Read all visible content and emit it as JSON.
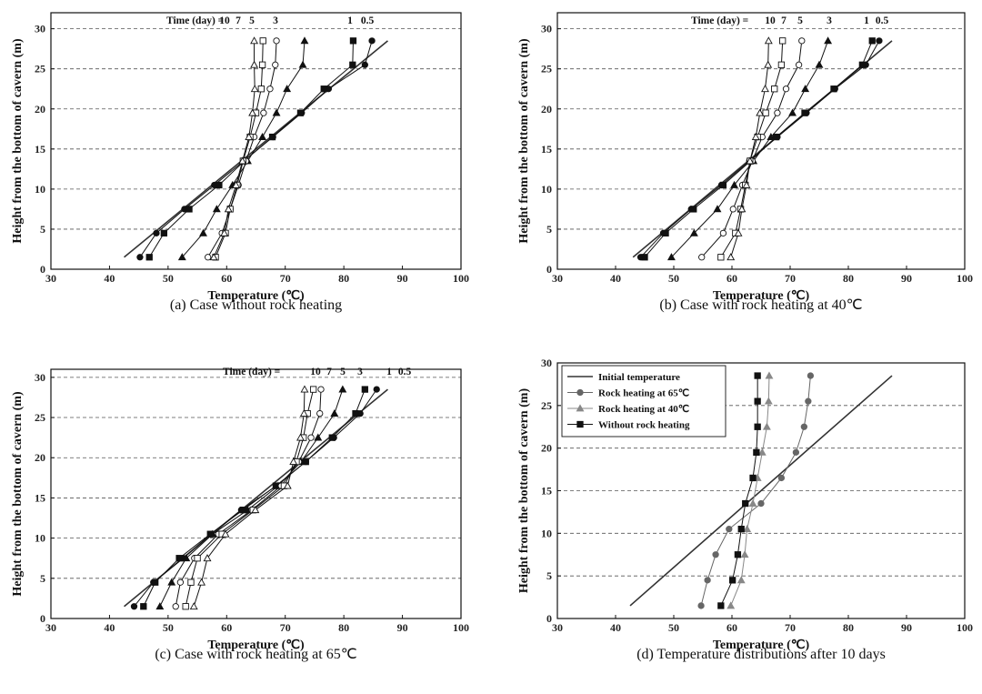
{
  "chart_data": [
    {
      "type": "line",
      "caption": "(a) Case without rock heating",
      "xlabel": "Temperature (℃)",
      "ylabel": "Height from the bottom of cavern (m)",
      "xlim": [
        30,
        100
      ],
      "ylim": [
        0,
        32
      ],
      "xticks": [
        "30",
        "40",
        "50",
        "60",
        "70",
        "80",
        "90",
        "100"
      ],
      "yticks": [
        "0",
        "5",
        "10",
        "15",
        "20",
        "25",
        "30"
      ],
      "grid": "horizontal-dashed",
      "time_label": "Time (day) =",
      "initial_line": {
        "x": [
          42.5,
          87.5
        ],
        "y": [
          1.5,
          28.5
        ]
      },
      "heights": [
        1.5,
        4.5,
        7.5,
        10.5,
        13.5,
        16.5,
        19.5,
        22.5,
        25.5,
        28.5
      ],
      "series": [
        {
          "name": "0.5",
          "marker": "circle-filled",
          "values": [
            45.2,
            48.0,
            52.8,
            57.9,
            62.9,
            67.9,
            72.8,
            77.4,
            83.6,
            84.8
          ]
        },
        {
          "name": "1",
          "marker": "square-filled",
          "values": [
            46.8,
            49.3,
            53.6,
            58.7,
            63.0,
            67.8,
            72.6,
            76.6,
            81.5,
            81.6
          ]
        },
        {
          "name": "3",
          "marker": "triangle-filled",
          "values": [
            52.4,
            56.0,
            58.3,
            61.0,
            63.6,
            66.1,
            68.5,
            70.3,
            73.0,
            73.3
          ]
        },
        {
          "name": "5",
          "marker": "circle-open",
          "values": [
            56.8,
            59.2,
            60.6,
            62.0,
            63.3,
            64.7,
            66.3,
            67.4,
            68.3,
            68.5
          ]
        },
        {
          "name": "7",
          "marker": "square-open",
          "values": [
            58.1,
            59.8,
            60.6,
            61.8,
            62.8,
            64.0,
            65.0,
            65.9,
            66.1,
            66.2
          ]
        },
        {
          "name": "10",
          "marker": "triangle-open",
          "values": [
            57.8,
            59.6,
            60.3,
            61.6,
            62.7,
            63.8,
            64.4,
            64.8,
            64.7,
            64.7
          ]
        }
      ]
    },
    {
      "type": "line",
      "caption": "(b) Case with rock heating at 40℃",
      "xlabel": "Temperature (℃)",
      "ylabel": "Height from the bottom of cavern (m)",
      "xlim": [
        30,
        100
      ],
      "ylim": [
        0,
        32
      ],
      "xticks": [
        "30",
        "40",
        "50",
        "60",
        "70",
        "80",
        "90",
        "100"
      ],
      "yticks": [
        "0",
        "5",
        "10",
        "15",
        "20",
        "25",
        "30"
      ],
      "grid": "horizontal-dashed",
      "time_label": "Time (day) =",
      "initial_line": {
        "x": [
          43.0,
          87.5
        ],
        "y": [
          1.5,
          28.5
        ]
      },
      "heights": [
        1.5,
        4.5,
        7.5,
        10.5,
        13.5,
        16.5,
        19.5,
        22.5,
        25.5,
        28.5
      ],
      "series": [
        {
          "name": "0.5",
          "marker": "circle-filled",
          "values": [
            44.3,
            48.2,
            53.0,
            58.2,
            63.0,
            67.8,
            72.8,
            77.7,
            83.0,
            85.3
          ]
        },
        {
          "name": "1",
          "marker": "square-filled",
          "values": [
            45.0,
            48.6,
            53.4,
            58.5,
            63.2,
            67.6,
            72.5,
            77.5,
            82.4,
            84.1
          ]
        },
        {
          "name": "3",
          "marker": "triangle-filled",
          "values": [
            49.6,
            53.5,
            57.5,
            60.4,
            63.7,
            66.7,
            70.4,
            72.6,
            75.0,
            76.5
          ]
        },
        {
          "name": "5",
          "marker": "circle-open",
          "values": [
            54.8,
            58.5,
            60.2,
            61.8,
            63.5,
            65.2,
            67.8,
            69.3,
            71.5,
            72.0
          ]
        },
        {
          "name": "7",
          "marker": "square-open",
          "values": [
            58.1,
            60.6,
            61.5,
            62.3,
            63.1,
            64.4,
            65.8,
            67.3,
            68.5,
            68.7
          ]
        },
        {
          "name": "10",
          "marker": "triangle-open",
          "values": [
            59.8,
            61.1,
            61.7,
            62.5,
            63.1,
            64.1,
            64.8,
            65.7,
            66.2,
            66.3
          ]
        }
      ]
    },
    {
      "type": "line",
      "caption": "(c) Case with rock heating at 65℃",
      "xlabel": "Temperature (℃)",
      "ylabel": "Height from the bottom of cavern (m)",
      "xlim": [
        30,
        100
      ],
      "ylim": [
        0,
        31
      ],
      "xticks": [
        "30",
        "40",
        "50",
        "60",
        "70",
        "80",
        "90",
        "100"
      ],
      "yticks": [
        "0",
        "5",
        "10",
        "15",
        "20",
        "25",
        "30"
      ],
      "grid": "horizontal-dashed",
      "time_label": "Time (day) =",
      "initial_line": {
        "x": [
          42.5,
          87.5
        ],
        "y": [
          1.5,
          28.5
        ]
      },
      "heights": [
        1.5,
        4.5,
        7.5,
        10.5,
        13.5,
        16.5,
        19.5,
        22.5,
        25.5,
        28.5
      ],
      "series": [
        {
          "name": "0.5",
          "marker": "circle-filled",
          "values": [
            44.2,
            47.5,
            52.6,
            57.3,
            62.5,
            68.5,
            73.5,
            78.3,
            82.8,
            85.6
          ]
        },
        {
          "name": "1",
          "marker": "square-filled",
          "values": [
            45.8,
            47.8,
            51.9,
            57.2,
            62.8,
            68.4,
            73.5,
            78.0,
            82.0,
            83.6
          ]
        },
        {
          "name": "3",
          "marker": "triangle-filled",
          "values": [
            48.6,
            50.6,
            53.1,
            57.6,
            63.6,
            68.8,
            72.7,
            75.6,
            78.4,
            79.8
          ]
        },
        {
          "name": "5",
          "marker": "circle-open",
          "values": [
            51.3,
            52.1,
            54.5,
            58.6,
            64.3,
            69.3,
            72.3,
            74.4,
            75.9,
            76.1
          ]
        },
        {
          "name": "7",
          "marker": "square-open",
          "values": [
            53.0,
            53.9,
            55.0,
            59.2,
            64.5,
            69.8,
            71.9,
            73.1,
            73.8,
            74.8
          ]
        },
        {
          "name": "10",
          "marker": "triangle-open",
          "values": [
            54.4,
            55.7,
            56.7,
            59.8,
            64.9,
            70.4,
            71.4,
            72.6,
            73.2,
            73.3
          ]
        }
      ]
    },
    {
      "type": "line",
      "caption": "(d) Temperature distributions after 10 days",
      "xlabel": "Temperature (℃)",
      "ylabel": "Height from the bottom of cavern (m)",
      "xlim": [
        30,
        100
      ],
      "ylim": [
        0,
        30
      ],
      "xticks": [
        "30",
        "40",
        "50",
        "60",
        "70",
        "80",
        "90",
        "100"
      ],
      "yticks": [
        "0",
        "5",
        "10",
        "15",
        "20",
        "25",
        "30"
      ],
      "grid": "horizontal-dashed",
      "legend": "top-left",
      "initial_line": {
        "name": "Initial temperature",
        "x": [
          42.5,
          87.5
        ],
        "y": [
          1.5,
          28.5
        ]
      },
      "heights": [
        1.5,
        4.5,
        7.5,
        10.5,
        13.5,
        16.5,
        19.5,
        22.5,
        25.5,
        28.5
      ],
      "series": [
        {
          "name": "Rock heating at 65℃",
          "marker": "circle-filled",
          "color": "#666666",
          "values": [
            54.7,
            55.8,
            57.2,
            59.5,
            65.0,
            68.5,
            71.0,
            72.4,
            73.1,
            73.5
          ]
        },
        {
          "name": "Rock heating at 40℃",
          "marker": "triangle-filled",
          "color": "#888888",
          "values": [
            59.8,
            61.6,
            62.2,
            62.6,
            63.6,
            64.4,
            65.2,
            66.0,
            66.3,
            66.4
          ]
        },
        {
          "name": "Without rock heating",
          "marker": "square-filled",
          "color": "#111111",
          "values": [
            58.1,
            60.1,
            61.0,
            61.6,
            62.3,
            63.6,
            64.2,
            64.4,
            64.4,
            64.4
          ]
        }
      ]
    }
  ]
}
